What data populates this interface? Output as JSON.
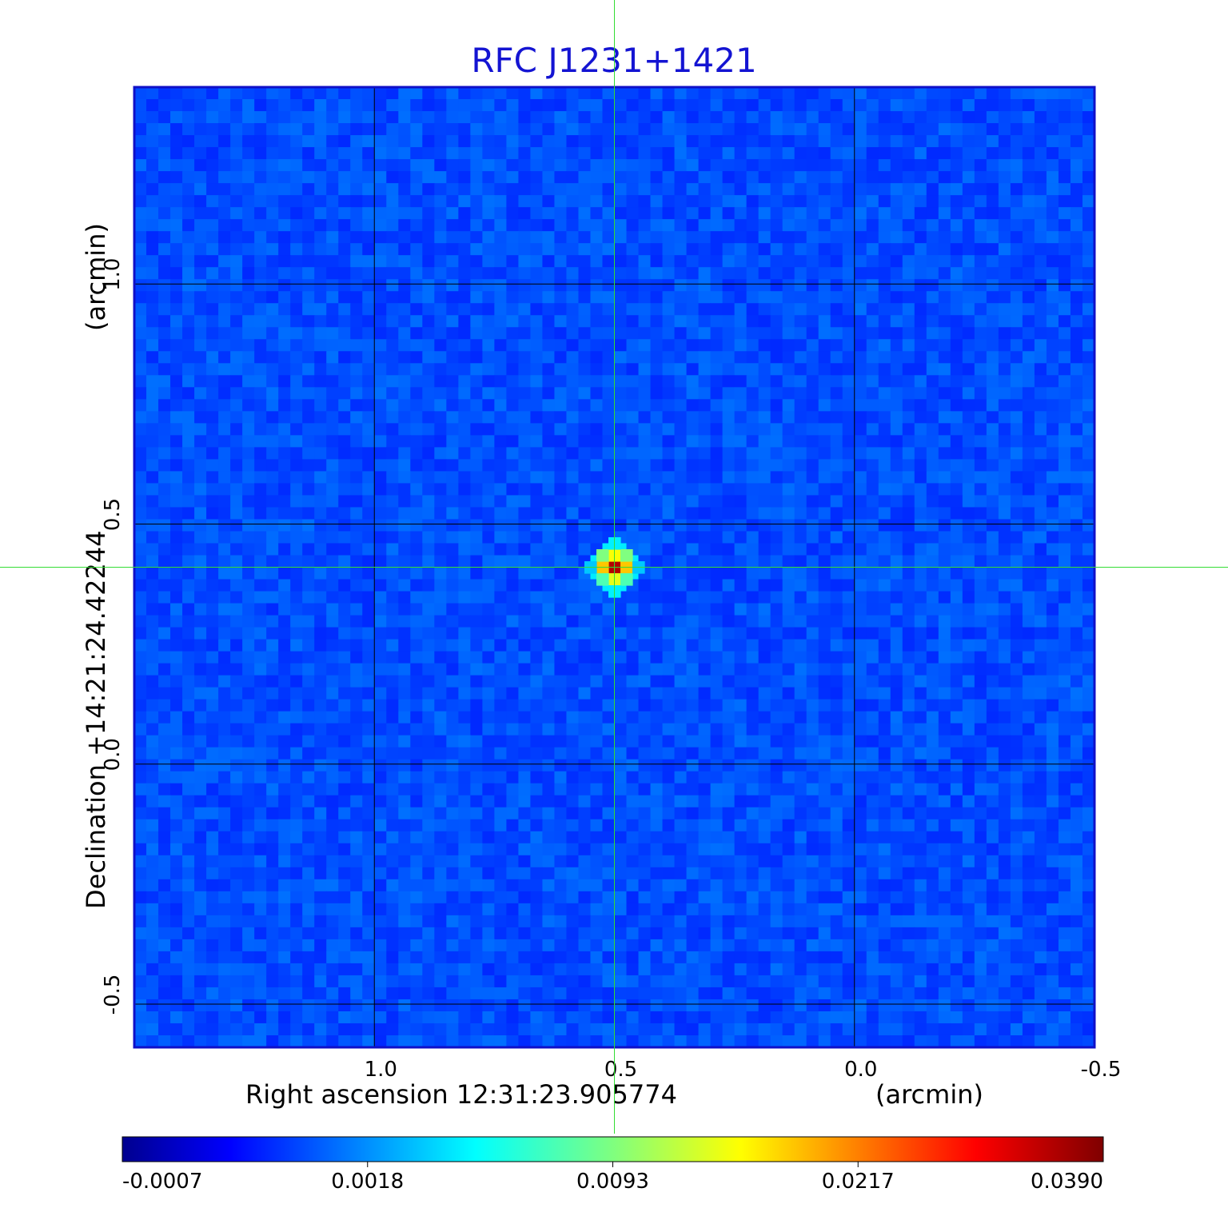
{
  "chart_data": {
    "type": "heatmap",
    "title": "RFC J1231+1421",
    "xlabel": "Right ascension  12:31:23.905774",
    "xunit": "(arcmin)",
    "ylabel": "Declination  +14:21:24.42244",
    "yunit": "(arcmin)",
    "x_ticks": [
      "1.0",
      "0.5",
      "0.0",
      "-0.5"
    ],
    "y_ticks": [
      "1.0",
      "0.5",
      "0.0",
      "-0.5"
    ],
    "x_tick_values": [
      1.0,
      0.5,
      0.0,
      -0.5
    ],
    "y_tick_values": [
      1.0,
      0.5,
      0.0,
      -0.5
    ],
    "xlim": [
      1.5,
      -0.5
    ],
    "ylim": [
      -0.59,
      1.41
    ],
    "grid": true,
    "crosshair": {
      "x": 0.5,
      "y": 0.41
    },
    "peak": {
      "x": 0.5,
      "y": 0.41,
      "value": 0.039
    },
    "colormap": "jet",
    "colorbar_ticks": [
      "-0.0007",
      "0.0018",
      "0.0093",
      "0.0217",
      "0.0390"
    ],
    "colorbar_tick_values": [
      -0.0007,
      0.0018,
      0.0093,
      0.0217,
      0.039
    ],
    "colors": {
      "title": "#1414d2",
      "background_map": "#1f4ff0",
      "crosshair": "#33dd33",
      "grid": "#000000"
    }
  }
}
